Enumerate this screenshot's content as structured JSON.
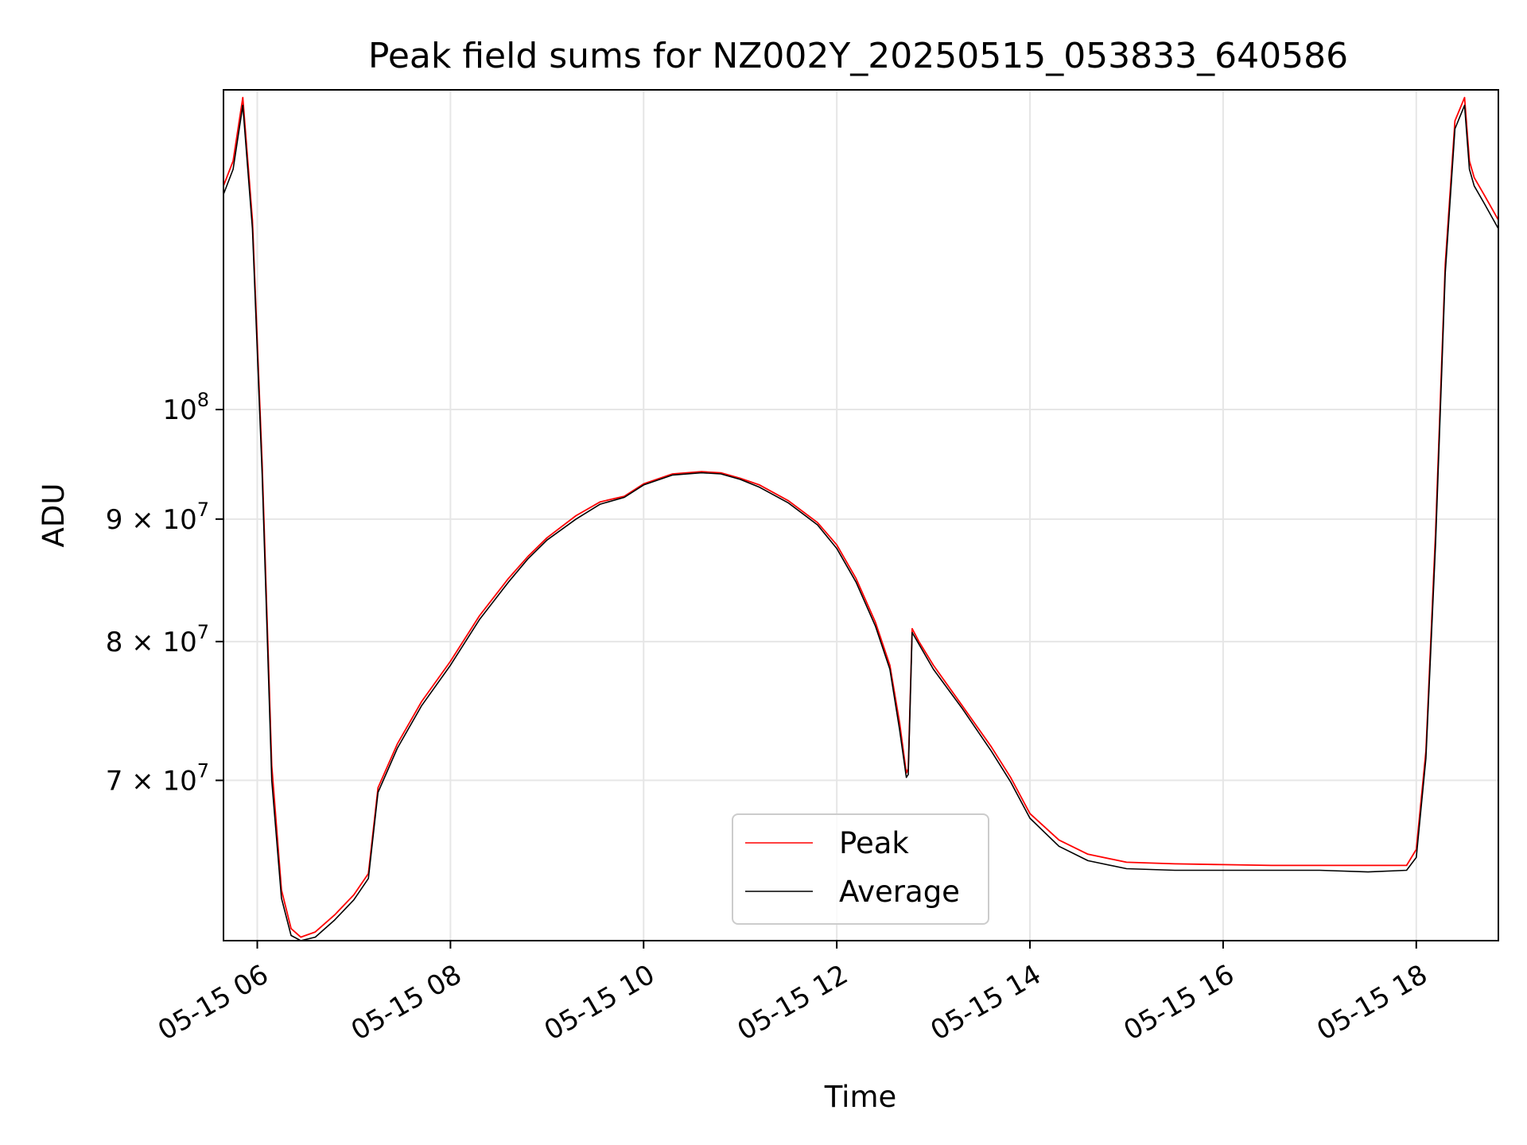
{
  "chart_data": {
    "type": "line",
    "title": "Peak field sums for NZ002Y_20250515_053833_640586",
    "xlabel": "Time",
    "ylabel": "ADU",
    "x_unit": "hours of 2025-05-15 (local)",
    "xlim": [
      5.65,
      18.85
    ],
    "yscale": "log",
    "ylim": [
      60000000.0,
      136000000.0
    ],
    "x_ticks": [
      6,
      8,
      10,
      12,
      14,
      16,
      18
    ],
    "x_tick_labels": [
      "05-15 06",
      "05-15 08",
      "05-15 10",
      "05-15 12",
      "05-15 14",
      "05-15 16",
      "05-15 18"
    ],
    "y_ticks": [
      {
        "value": 100000000.0,
        "mantissa": "",
        "base": "10",
        "exponent": "8"
      },
      {
        "value": 90000000.0,
        "mantissa": "9 × ",
        "base": "10",
        "exponent": "7"
      },
      {
        "value": 80000000.0,
        "mantissa": "8 × ",
        "base": "10",
        "exponent": "7"
      },
      {
        "value": 70000000.0,
        "mantissa": "7 × ",
        "base": "10",
        "exponent": "7"
      }
    ],
    "grid": true,
    "legend_position": "lower-center",
    "x": [
      5.65,
      5.75,
      5.85,
      5.95,
      6.05,
      6.15,
      6.25,
      6.35,
      6.45,
      6.6,
      6.8,
      7.0,
      7.15,
      7.25,
      7.45,
      7.7,
      8.0,
      8.3,
      8.6,
      8.8,
      9.0,
      9.3,
      9.55,
      9.8,
      10.0,
      10.3,
      10.6,
      10.8,
      11.0,
      11.2,
      11.5,
      11.8,
      12.0,
      12.2,
      12.4,
      12.55,
      12.65,
      12.72,
      12.74,
      12.78,
      12.85,
      13.0,
      13.3,
      13.6,
      13.8,
      14.0,
      14.3,
      14.6,
      15.0,
      15.5,
      16.0,
      16.5,
      17.0,
      17.5,
      17.9,
      18.0,
      18.1,
      18.2,
      18.3,
      18.4,
      18.5,
      18.55,
      18.6,
      18.7,
      18.85
    ],
    "series": [
      {
        "name": "Peak",
        "color": "#ff0000",
        "values": [
          124000000.0,
          127000000.0,
          135000000.0,
          120000000.0,
          95000000.0,
          71000000.0,
          63000000.0,
          60700000.0,
          60200000.0,
          60500000.0,
          61500000.0,
          62700000.0,
          64000000.0,
          69500000.0,
          72500000.0,
          75500000.0,
          78500000.0,
          82000000.0,
          85000000.0,
          86800000.0,
          88400000.0,
          90300000.0,
          91500000.0,
          92000000.0,
          93100000.0,
          94000000.0,
          94200000.0,
          94100000.0,
          93600000.0,
          93000000.0,
          91600000.0,
          89700000.0,
          87800000.0,
          85000000.0,
          81500000.0,
          78200000.0,
          74000000.0,
          70500000.0,
          70800000.0,
          81000000.0,
          80000000.0,
          78200000.0,
          75200000.0,
          72300000.0,
          70200000.0,
          67800000.0,
          66100000.0,
          65200000.0,
          64700000.0,
          64600000.0,
          64550000.0,
          64500000.0,
          64500000.0,
          64500000.0,
          64500000.0,
          65500000.0,
          72000000.0,
          89000000.0,
          115000000.0,
          132000000.0,
          135000000.0,
          127000000.0,
          125000000.0,
          123000000.0,
          120000000.0
        ]
      },
      {
        "name": "Average",
        "color": "#000000",
        "values": [
          123000000.0,
          126000000.0,
          134000000.0,
          119000000.0,
          94000000.0,
          70000000.0,
          62500000.0,
          60300000.0,
          60000000.0,
          60200000.0,
          61200000.0,
          62400000.0,
          63700000.0,
          69200000.0,
          72200000.0,
          75200000.0,
          78200000.0,
          81700000.0,
          84700000.0,
          86600000.0,
          88200000.0,
          90000000.0,
          91300000.0,
          91900000.0,
          93000000.0,
          93900000.0,
          94100000.0,
          94000000.0,
          93500000.0,
          92800000.0,
          91400000.0,
          89500000.0,
          87500000.0,
          84700000.0,
          81200000.0,
          77900000.0,
          73500000.0,
          70200000.0,
          70400000.0,
          80700000.0,
          79800000.0,
          77900000.0,
          75000000.0,
          72000000.0,
          69900000.0,
          67500000.0,
          65700000.0,
          64800000.0,
          64300000.0,
          64200000.0,
          64200000.0,
          64200000.0,
          64200000.0,
          64100000.0,
          64200000.0,
          65000000.0,
          71500000.0,
          88000000.0,
          114000000.0,
          131000000.0,
          134000000.0,
          126000000.0,
          124000000.0,
          122000000.0,
          119000000.0
        ]
      }
    ]
  }
}
